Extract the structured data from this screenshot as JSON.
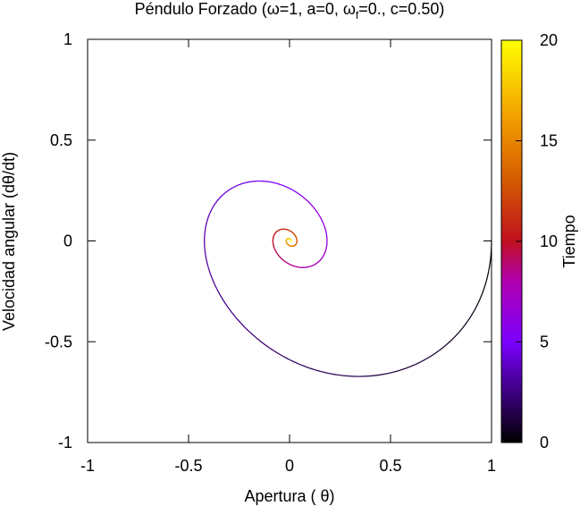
{
  "chart_data": {
    "type": "line",
    "title": "Péndulo Forzado (ω=1, a=0, ω",
    "title_sub": "f",
    "title_tail": "=0., c=0.50)",
    "xlabel": "Apertura ( θ)",
    "ylabel": "Velocidad angular (dθ/dt)",
    "xlim": [
      -1,
      1
    ],
    "ylim": [
      -1,
      1
    ],
    "xticks": [
      -1,
      -0.5,
      0,
      0.5,
      1
    ],
    "yticks": [
      -1,
      -0.5,
      0,
      0.5,
      1
    ],
    "xtick_labels": [
      "-1",
      "-0.5",
      "0",
      "0.5",
      "1"
    ],
    "ytick_labels": [
      "-1",
      "-0.5",
      "0",
      "0.5",
      "1"
    ],
    "grid": false,
    "legend": "none",
    "model": {
      "omega": 1,
      "a": 0,
      "omega_f": 0,
      "c": 0.5,
      "theta0": 1,
      "dtheta0": 0,
      "t_max": 20
    },
    "colorbar": {
      "label": "Tiempo",
      "range": [
        0,
        20
      ],
      "ticks": [
        0,
        5,
        10,
        15,
        20
      ],
      "tick_labels": [
        "0",
        "5",
        "10",
        "15",
        "20"
      ],
      "stops": [
        {
          "t": 0,
          "color": "#000000"
        },
        {
          "t": 5,
          "color": "#7a00ff"
        },
        {
          "t": 8,
          "color": "#b000b0"
        },
        {
          "t": 10,
          "color": "#c01020"
        },
        {
          "t": 13,
          "color": "#d45a00"
        },
        {
          "t": 16,
          "color": "#f29b00"
        },
        {
          "t": 20,
          "color": "#ffff00"
        }
      ]
    }
  }
}
